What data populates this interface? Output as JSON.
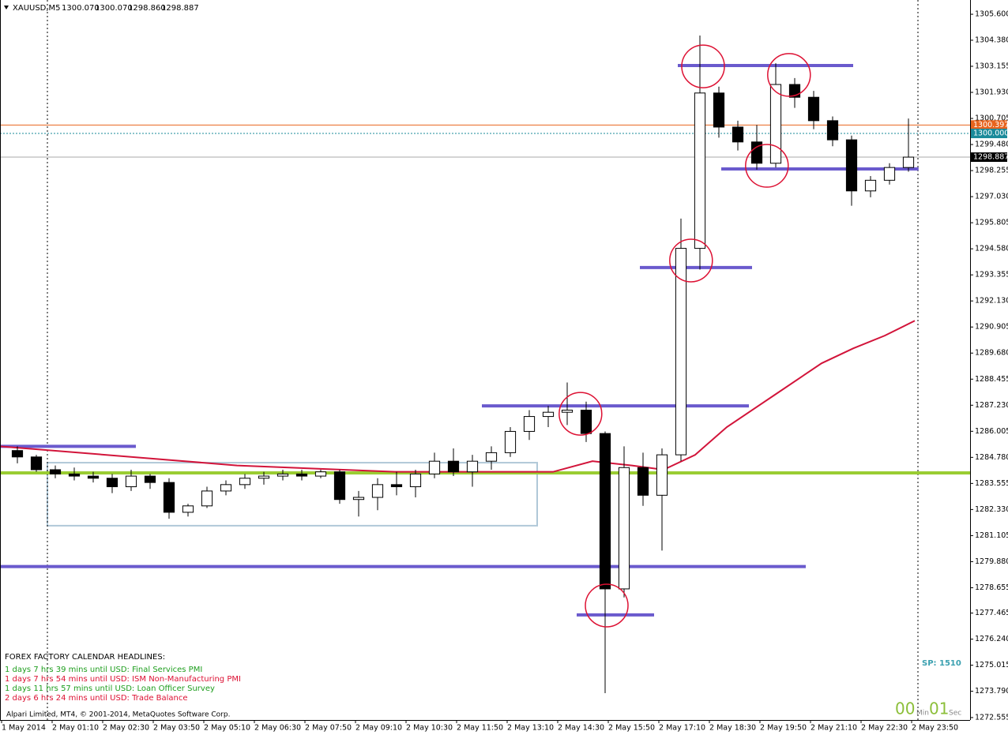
{
  "chart_data": {
    "type": "candlestick",
    "header": {
      "symbol": "XAUUSD,M5",
      "ohlc": [
        "1300.070",
        "1300.070",
        "1298.860",
        "1298.887"
      ]
    },
    "xlim": [
      -12.5,
      1522.5
    ],
    "ylim": [
      1272.44,
      1306.27
    ],
    "x": [
      15,
      45,
      75,
      105,
      135,
      165,
      195,
      225,
      255,
      285,
      315,
      345,
      375,
      405,
      435,
      465,
      495,
      525,
      555,
      585,
      615,
      645,
      675,
      705,
      735,
      765,
      795,
      825,
      855,
      885,
      915,
      945,
      975,
      1005,
      1035,
      1065,
      1095,
      1125,
      1155,
      1185,
      1215,
      1245,
      1275,
      1305,
      1335,
      1365,
      1395,
      1425
    ],
    "open": [
      1285.1,
      1284.8,
      1284.2,
      1284.0,
      1283.9,
      1283.8,
      1283.4,
      1283.9,
      1283.6,
      1282.2,
      1282.5,
      1283.2,
      1283.5,
      1283.8,
      1283.9,
      1284.0,
      1283.9,
      1284.1,
      1282.8,
      1282.9,
      1283.5,
      1283.4,
      1284.0,
      1284.6,
      1284.1,
      1284.6,
      1285.0,
      1286.0,
      1286.7,
      1286.9,
      1287.0,
      1285.9,
      1278.6,
      1284.3,
      1283.0,
      1284.9,
      1294.6,
      1301.9,
      1300.3,
      1299.6,
      1298.6,
      1302.3,
      1301.7,
      1300.6,
      1299.7,
      1297.3,
      1297.8,
      1298.4
    ],
    "high": [
      1285.3,
      1284.9,
      1284.4,
      1284.3,
      1284.1,
      1284.0,
      1284.2,
      1284.0,
      1283.8,
      1282.6,
      1283.4,
      1283.7,
      1284.0,
      1284.1,
      1284.2,
      1284.2,
      1284.2,
      1284.2,
      1283.2,
      1283.8,
      1284.1,
      1284.2,
      1285.0,
      1285.2,
      1284.9,
      1285.3,
      1286.2,
      1287.0,
      1287.2,
      1288.3,
      1287.4,
      1286.0,
      1285.3,
      1285.0,
      1285.2,
      1296.0,
      1304.6,
      1302.2,
      1300.6,
      1300.4,
      1303.3,
      1302.6,
      1302.0,
      1300.8,
      1299.9,
      1298.0,
      1298.6,
      1300.7
    ],
    "low": [
      1284.5,
      1284.1,
      1283.8,
      1283.7,
      1283.6,
      1283.1,
      1283.2,
      1283.3,
      1281.9,
      1282.0,
      1282.4,
      1283.0,
      1283.3,
      1283.5,
      1283.7,
      1283.7,
      1283.8,
      1282.6,
      1282.0,
      1282.3,
      1283.0,
      1282.9,
      1283.8,
      1283.9,
      1283.4,
      1284.2,
      1284.8,
      1285.6,
      1286.2,
      1286.3,
      1285.5,
      1273.7,
      1278.2,
      1282.5,
      1280.4,
      1284.6,
      1293.6,
      1299.8,
      1299.2,
      1298.3,
      1298.4,
      1301.2,
      1300.2,
      1299.4,
      1296.6,
      1297.0,
      1297.6,
      1298.2
    ],
    "close": [
      1284.8,
      1284.2,
      1284.0,
      1283.9,
      1283.8,
      1283.4,
      1283.9,
      1283.6,
      1282.2,
      1282.5,
      1283.2,
      1283.5,
      1283.8,
      1283.9,
      1284.0,
      1283.9,
      1284.1,
      1282.8,
      1282.9,
      1283.5,
      1283.4,
      1284.0,
      1284.6,
      1284.1,
      1284.6,
      1285.0,
      1286.0,
      1286.7,
      1286.9,
      1287.0,
      1285.9,
      1278.6,
      1284.3,
      1283.0,
      1284.9,
      1294.6,
      1301.9,
      1300.3,
      1299.6,
      1298.6,
      1302.3,
      1301.7,
      1300.6,
      1299.7,
      1297.3,
      1297.8,
      1298.4,
      1298.887
    ],
    "moving_average": {
      "color": "#d2143a",
      "x": [
        -12.5,
        237.5,
        362.5,
        612.5,
        862.5,
        925,
        987.5,
        1037.5,
        1087.5,
        1137.5,
        1212.5,
        1287.5,
        1337.5,
        1387.5,
        1435
      ],
      "values": [
        1285.3,
        1284.7,
        1284.4,
        1284.1,
        1284.1,
        1284.6,
        1284.4,
        1284.2,
        1284.9,
        1286.2,
        1287.7,
        1289.2,
        1289.9,
        1290.5,
        1291.2
      ]
    },
    "level_color": "#6a5acd",
    "levels": [
      {
        "price": 1285.3,
        "x": [
          -12.5,
          202.5
        ]
      },
      {
        "price": 1279.65,
        "x": [
          -12.5,
          1262.5
        ]
      },
      {
        "price": 1277.38,
        "x": [
          900,
          1022.5
        ]
      },
      {
        "price": 1287.2,
        "x": [
          750,
          1172.5
        ]
      },
      {
        "price": 1293.7,
        "x": [
          1000,
          1177.5
        ]
      },
      {
        "price": 1303.19,
        "x": [
          1060,
          1337.5
        ]
      },
      {
        "price": 1298.33,
        "x": [
          1128.75,
          1441
        ]
      }
    ],
    "support_line": {
      "price": 1284.05,
      "color": "#9acd32"
    },
    "box": {
      "x": [
        62.5,
        837.5
      ],
      "y": [
        1281.57,
        1284.53
      ],
      "color": "#b0c8d8"
    },
    "circles": [
      {
        "x": 1100,
        "y": 1303.15
      },
      {
        "x": 1236,
        "y": 1302.75
      },
      {
        "x": 1201,
        "y": 1298.48
      },
      {
        "x": 1081,
        "y": 1294.03
      },
      {
        "x": 906,
        "y": 1286.83
      },
      {
        "x": 947.5,
        "y": 1277.82
      }
    ],
    "circle_color": "#dd1133",
    "vlines": [
      62.5,
      1440
    ],
    "price_lines": [
      {
        "value": 1300.397,
        "color": "#e8641e",
        "style": "solid"
      },
      {
        "value": {
          "value": 1300,
          "label": "1300.000"
        },
        "color": "#1a8a9a",
        "style": "dotted"
      },
      {
        "value": 1298.887,
        "color": "#000000",
        "style": "solid"
      }
    ],
    "yticks": [
      {
        "value": 1305.6,
        "label": "1305.600"
      },
      {
        "value": 1304.38,
        "label": "1304.380"
      },
      {
        "value": 1303.155,
        "label": "1303.155"
      },
      {
        "value": 1301.93,
        "label": "1301.930"
      },
      {
        "value": 1300.705,
        "label": "1300.705"
      },
      {
        "value": 1299.48,
        "label": "1299.480"
      },
      {
        "value": 1298.255,
        "label": "1298.255"
      },
      {
        "value": 1297.03,
        "label": "1297.030"
      },
      {
        "value": 1295.805,
        "label": "1295.805"
      },
      {
        "value": 1294.58,
        "label": "1294.580"
      },
      {
        "value": 1293.355,
        "label": "1293.355"
      },
      {
        "value": 1292.13,
        "label": "1292.130"
      },
      {
        "value": 1290.905,
        "label": "1290.905"
      },
      {
        "value": 1289.68,
        "label": "1289.680"
      },
      {
        "value": 1288.455,
        "label": "1288.455"
      },
      {
        "value": 1287.23,
        "label": "1287.230"
      },
      {
        "value": 1286.005,
        "label": "1286.005"
      },
      {
        "value": 1284.78,
        "label": "1284.780"
      },
      {
        "value": 1283.555,
        "label": "1283.555"
      },
      {
        "value": 1282.33,
        "label": "1282.330"
      },
      {
        "value": 1281.105,
        "label": "1281.105"
      },
      {
        "value": 1279.88,
        "label": "1279.880"
      },
      {
        "value": 1278.655,
        "label": "1278.655"
      },
      {
        "value": 1277.465,
        "label": "1277.465"
      },
      {
        "value": 1276.24,
        "label": "1276.240"
      },
      {
        "value": 1275.015,
        "label": "1275.015"
      },
      {
        "value": 1273.79,
        "label": "1273.790"
      },
      {
        "value": 1272.555,
        "label": "1272.555"
      }
    ],
    "xticks": [
      {
        "value": -10,
        "label": "1 May 2014"
      },
      {
        "value": 70,
        "label": "2 May 01:10"
      },
      {
        "value": 150,
        "label": "2 May 02:30"
      },
      {
        "value": 230,
        "label": "2 May 03:50"
      },
      {
        "value": 310,
        "label": "2 May 05:10"
      },
      {
        "value": 390,
        "label": "2 May 06:30"
      },
      {
        "value": 470,
        "label": "2 May 07:50"
      },
      {
        "value": 550,
        "label": "2 May 09:10"
      },
      {
        "value": 630,
        "label": "2 May 10:30"
      },
      {
        "value": 710,
        "label": "2 May 11:50"
      },
      {
        "value": 790,
        "label": "2 May 13:10"
      },
      {
        "value": 870,
        "label": "2 May 14:30"
      },
      {
        "value": 950,
        "label": "2 May 15:50"
      },
      {
        "value": 1030,
        "label": "2 May 17:10"
      },
      {
        "value": 1110,
        "label": "2 May 18:30"
      },
      {
        "value": 1190,
        "label": "2 May 19:50"
      },
      {
        "value": 1270,
        "label": "2 May 21:10"
      },
      {
        "value": 1350,
        "label": "2 May 22:30"
      },
      {
        "value": 1430,
        "label": "2 May 23:50"
      }
    ],
    "calendar": {
      "title": "FOREX FACTORY CALENDAR HEADLINES:",
      "items": [
        {
          "text": "1 days 7 hrs 39 mins until USD: Final Services PMI",
          "color": "#1e9e1e"
        },
        {
          "text": "1 days 7 hrs 54 mins until USD: ISM Non-Manufacturing PMI",
          "color": "#dd1133"
        },
        {
          "text": "1 days 11 hrs 57 mins until USD: Loan Officer Survey",
          "color": "#1e9e1e"
        },
        {
          "text": "2 days 6 hrs 24 mins until USD: Trade Balance",
          "color": "#dd1133"
        }
      ]
    },
    "spread": "SP: 1510",
    "countdown": {
      "min": "00",
      "min_label": "Min",
      "sec": "01",
      "sec_label": "Sec"
    },
    "copyright": "Alpari Limited, MT4, © 2001-2014, MetaQuotes Software Corp."
  }
}
